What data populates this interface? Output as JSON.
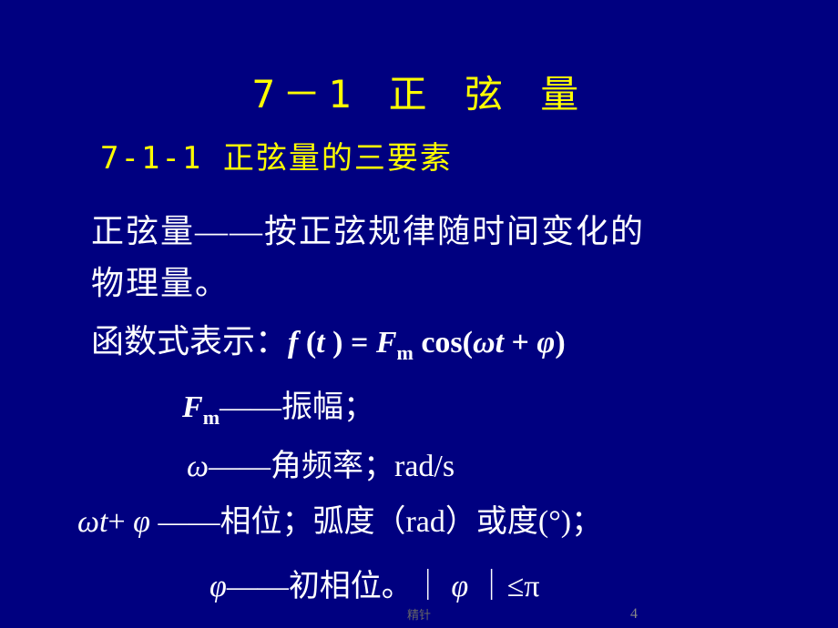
{
  "title": "7－1  正  弦  量",
  "subtitle": "7-1-1 正弦量的三要素",
  "def1": "正弦量——按正弦规律随时间变化的",
  "def2": "物理量。",
  "funcPrefix": "函数式表示：",
  "formula": {
    "lhs_f": "f",
    "lhs_paren_open": " (",
    "lhs_t": "t ",
    "lhs_paren_close": ") ",
    "eq": "= ",
    "F": "F",
    "Fsub": "m",
    "sp": " ",
    "cos": "cos(",
    "omega": "ω",
    "t2": "t ",
    "plus": "+ ",
    "phi": "φ",
    "close": ")"
  },
  "ampLine": {
    "F": "F",
    "Fsub": "m",
    "rest": "——振幅；"
  },
  "freqLine": {
    "omega": "ω",
    "rest": "——角频率；rad/s"
  },
  "phaseLine": {
    "omega": "ω",
    "t": "t",
    "plus": "+",
    "phi": "φ",
    "rest": " ——相位；弧度（rad）或度(°)；"
  },
  "initPhaseLine": {
    "phi": "φ",
    "dash": "——初相位。｜ ",
    "phi2": "φ",
    "rest": " ｜≤π"
  },
  "footer": "精针",
  "pageNum": "4",
  "colors": {
    "bg": "#000080",
    "title": "#ffff00",
    "body": "#ffffff"
  }
}
